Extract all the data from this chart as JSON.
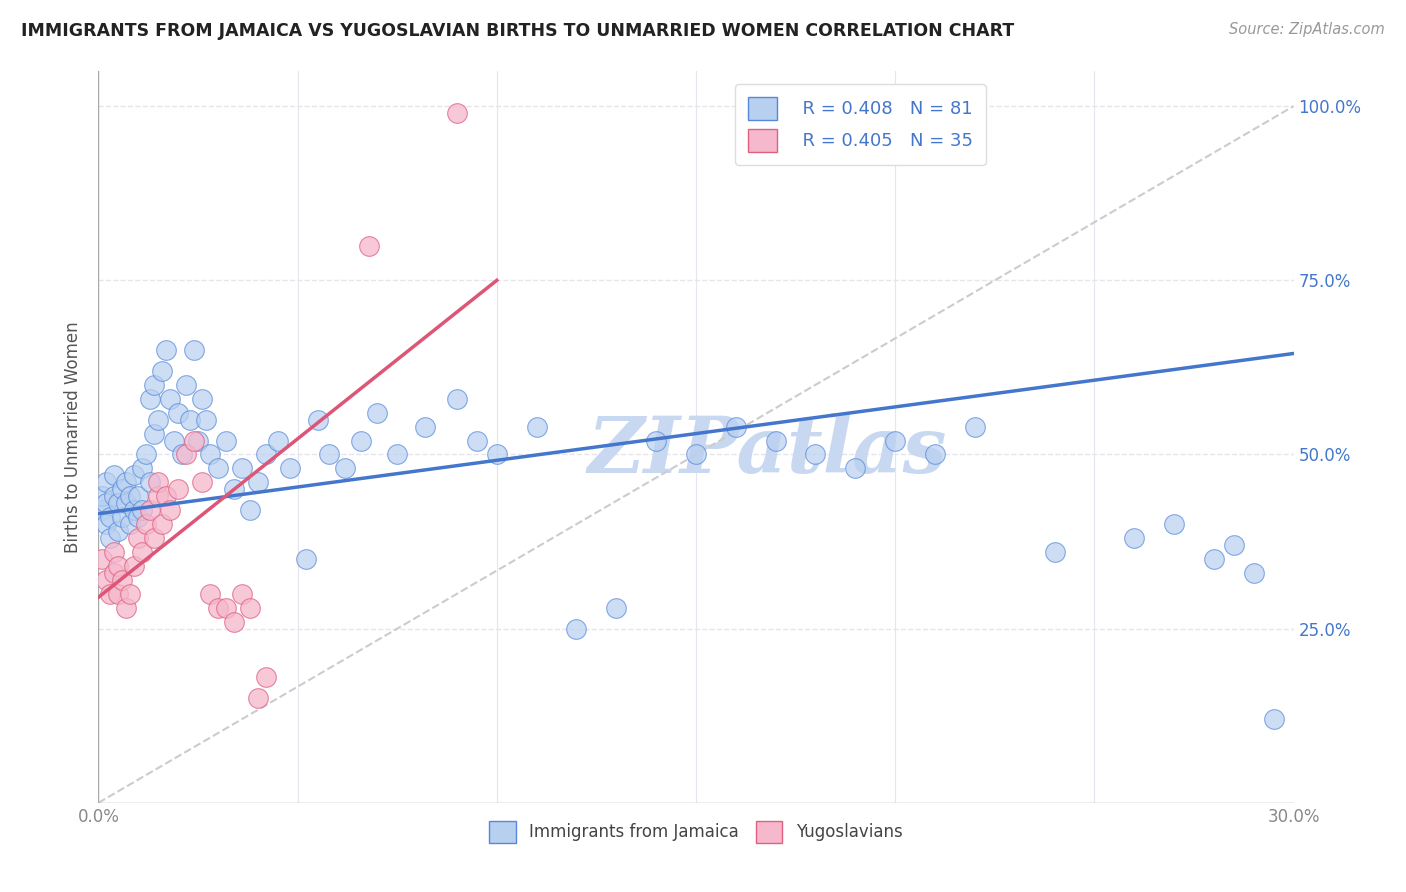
{
  "title": "IMMIGRANTS FROM JAMAICA VS YUGOSLAVIAN BIRTHS TO UNMARRIED WOMEN CORRELATION CHART",
  "source": "Source: ZipAtlas.com",
  "ylabel": "Births to Unmarried Women",
  "legend_blue_r": "R = 0.408",
  "legend_blue_n": "N = 81",
  "legend_pink_r": "R = 0.405",
  "legend_pink_n": "N = 35",
  "legend_blue_label": "Immigrants from Jamaica",
  "legend_pink_label": "Yugoslavians",
  "blue_color": "#b8d0f0",
  "pink_color": "#f5b8cc",
  "blue_edge_color": "#5588dd",
  "pink_edge_color": "#e06080",
  "blue_line_color": "#4477cc",
  "pink_line_color": "#dd5577",
  "diag_line_color": "#cccccc",
  "watermark_color": "#c8d8f0",
  "background_color": "#ffffff",
  "grid_color": "#e5e5ee",
  "title_color": "#222222",
  "legend_r_color": "#4477cc",
  "right_tick_color": "#4477cc",
  "blue_scatter_x": [
    0.001,
    0.001,
    0.002,
    0.002,
    0.002,
    0.003,
    0.003,
    0.004,
    0.004,
    0.005,
    0.005,
    0.006,
    0.006,
    0.007,
    0.007,
    0.008,
    0.008,
    0.009,
    0.009,
    0.01,
    0.01,
    0.011,
    0.011,
    0.012,
    0.013,
    0.013,
    0.014,
    0.014,
    0.015,
    0.016,
    0.017,
    0.018,
    0.019,
    0.02,
    0.021,
    0.022,
    0.023,
    0.024,
    0.025,
    0.026,
    0.027,
    0.028,
    0.03,
    0.032,
    0.034,
    0.036,
    0.038,
    0.04,
    0.042,
    0.045,
    0.048,
    0.052,
    0.055,
    0.058,
    0.062,
    0.066,
    0.07,
    0.075,
    0.082,
    0.09,
    0.095,
    0.1,
    0.11,
    0.12,
    0.13,
    0.14,
    0.15,
    0.16,
    0.17,
    0.18,
    0.19,
    0.2,
    0.21,
    0.22,
    0.24,
    0.26,
    0.27,
    0.28,
    0.285,
    0.29,
    0.295
  ],
  "blue_scatter_y": [
    0.42,
    0.44,
    0.4,
    0.43,
    0.46,
    0.38,
    0.41,
    0.44,
    0.47,
    0.39,
    0.43,
    0.41,
    0.45,
    0.43,
    0.46,
    0.4,
    0.44,
    0.42,
    0.47,
    0.41,
    0.44,
    0.48,
    0.42,
    0.5,
    0.46,
    0.58,
    0.53,
    0.6,
    0.55,
    0.62,
    0.65,
    0.58,
    0.52,
    0.56,
    0.5,
    0.6,
    0.55,
    0.65,
    0.52,
    0.58,
    0.55,
    0.5,
    0.48,
    0.52,
    0.45,
    0.48,
    0.42,
    0.46,
    0.5,
    0.52,
    0.48,
    0.35,
    0.55,
    0.5,
    0.48,
    0.52,
    0.56,
    0.5,
    0.54,
    0.58,
    0.52,
    0.5,
    0.54,
    0.25,
    0.28,
    0.52,
    0.5,
    0.54,
    0.52,
    0.5,
    0.48,
    0.52,
    0.5,
    0.54,
    0.36,
    0.38,
    0.4,
    0.35,
    0.37,
    0.33,
    0.12
  ],
  "pink_scatter_x": [
    0.001,
    0.002,
    0.003,
    0.004,
    0.004,
    0.005,
    0.005,
    0.006,
    0.007,
    0.008,
    0.009,
    0.01,
    0.011,
    0.012,
    0.013,
    0.014,
    0.015,
    0.015,
    0.016,
    0.017,
    0.018,
    0.02,
    0.022,
    0.024,
    0.026,
    0.028,
    0.03,
    0.032,
    0.034,
    0.036,
    0.038,
    0.04,
    0.042,
    0.068,
    0.09
  ],
  "pink_scatter_y": [
    0.35,
    0.32,
    0.3,
    0.33,
    0.36,
    0.3,
    0.34,
    0.32,
    0.28,
    0.3,
    0.34,
    0.38,
    0.36,
    0.4,
    0.42,
    0.38,
    0.44,
    0.46,
    0.4,
    0.44,
    0.42,
    0.45,
    0.5,
    0.52,
    0.46,
    0.3,
    0.28,
    0.28,
    0.26,
    0.3,
    0.28,
    0.15,
    0.18,
    0.8,
    0.99
  ],
  "xlim": [
    0.0,
    0.3
  ],
  "ylim": [
    0.0,
    1.05
  ],
  "blue_line_x0": 0.0,
  "blue_line_x1": 0.3,
  "blue_line_y0": 0.415,
  "blue_line_y1": 0.645,
  "pink_line_x0": 0.0,
  "pink_line_x1": 0.1,
  "pink_line_y0": 0.295,
  "pink_line_y1": 0.75,
  "diag_line_x0": 0.0,
  "diag_line_x1": 0.3,
  "diag_line_y0": 0.0,
  "diag_line_y1": 1.0,
  "xticks": [
    0.0,
    0.05,
    0.1,
    0.15,
    0.2,
    0.25,
    0.3
  ],
  "yticks_right": [
    1.0,
    0.75,
    0.5,
    0.25
  ],
  "ytick_right_labels": [
    "100.0%",
    "75.0%",
    "50.0%",
    "25.0%"
  ]
}
